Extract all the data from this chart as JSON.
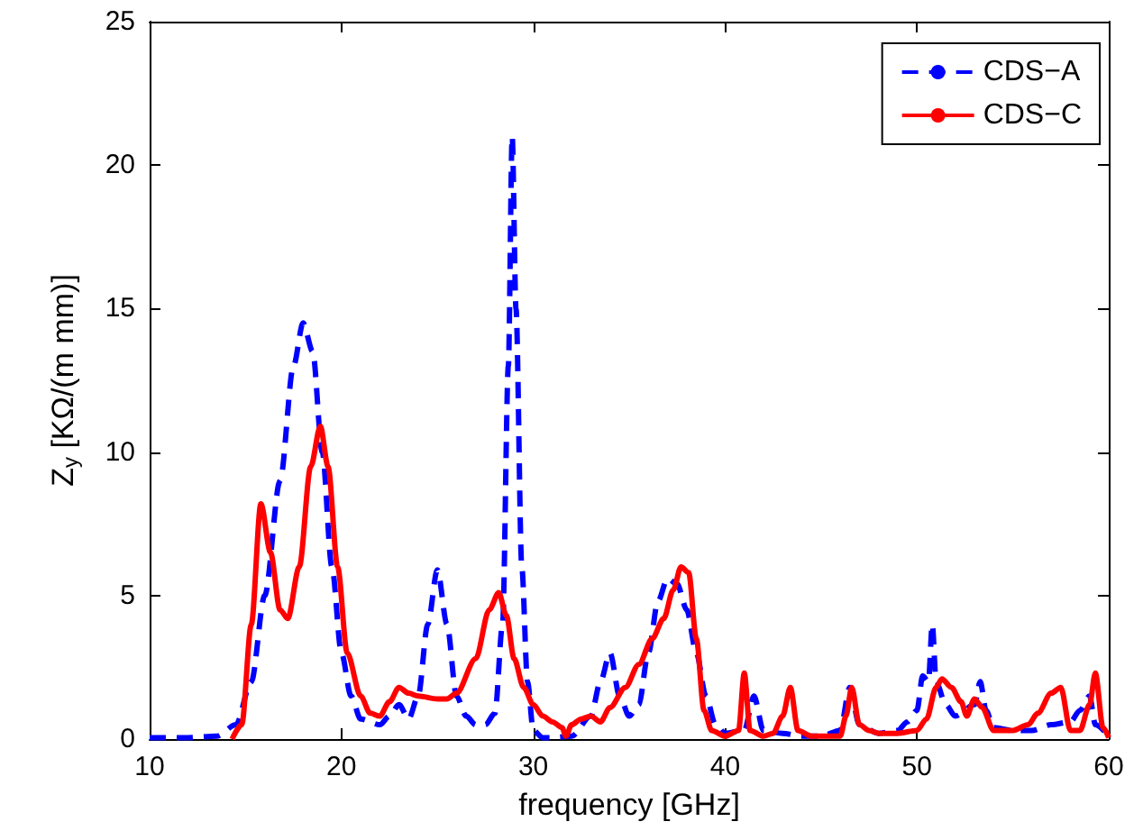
{
  "chart_data": {
    "type": "line",
    "xlabel": "frequency [GHz]",
    "ylabel": "Z$_{y}$ [KΩ/(m mm)]",
    "xlim": [
      10,
      60
    ],
    "xticks": [
      10,
      20,
      30,
      40,
      50,
      60
    ],
    "ylim": [
      0,
      25
    ],
    "yticks": [
      0,
      5,
      10,
      15,
      20,
      25
    ],
    "grid": false,
    "legend": "top right",
    "marker": "none",
    "series": [
      {
        "name": "CDS−A",
        "color": "#0000ff",
        "line_style": "dashed",
        "x": [
          10,
          12,
          13.5,
          14.5,
          15.3,
          16,
          16.8,
          17.5,
          18,
          18.5,
          19,
          19.5,
          20,
          20.5,
          21,
          22,
          22.5,
          23,
          23.5,
          24,
          24.5,
          25,
          25.5,
          26,
          26.5,
          27,
          27.5,
          28,
          28.4,
          28.7,
          28.9,
          29.1,
          29.4,
          29.7,
          30,
          30.5,
          31,
          32,
          33,
          33.5,
          34,
          34.5,
          35,
          35.5,
          36,
          36.5,
          37,
          37.5,
          38,
          38.5,
          39,
          39.5,
          40,
          41,
          41.5,
          42,
          43,
          44,
          45,
          46,
          46.5,
          47,
          48,
          49,
          49.5,
          50,
          50.3,
          50.6,
          50.8,
          51,
          51.5,
          52,
          53,
          53.3,
          53.6,
          54,
          55,
          56,
          57,
          58,
          58.5,
          59,
          59.3,
          60
        ],
        "values": [
          0.05,
          0.05,
          0.1,
          0.5,
          2,
          5,
          9,
          13,
          14.5,
          13.5,
          10,
          6,
          3,
          1.5,
          0.7,
          0.5,
          0.8,
          1.2,
          0.7,
          1.5,
          4,
          5.9,
          4,
          1.5,
          0.8,
          0.5,
          0.5,
          0.9,
          4,
          13,
          21,
          15,
          6,
          2,
          0.3,
          0.05,
          0.05,
          0.1,
          0.8,
          2,
          3,
          1.5,
          0.8,
          1.2,
          3,
          4.8,
          5.6,
          5.4,
          4.5,
          3,
          1.5,
          0.5,
          0.2,
          0.3,
          1.5,
          0.3,
          0.2,
          0.1,
          0.1,
          0.3,
          1.8,
          0.5,
          0.2,
          0.3,
          0.6,
          1,
          2.2,
          2,
          4,
          2,
          1.2,
          0.8,
          1.2,
          2,
          1,
          0.4,
          0.3,
          0.3,
          0.5,
          0.6,
          1,
          1.5,
          0.5,
          0.1
        ]
      },
      {
        "name": "CDS−C",
        "color": "#ff0000",
        "line_style": "solid",
        "x": [
          14.3,
          14.8,
          15.3,
          15.8,
          16.3,
          16.8,
          17.2,
          17.8,
          18.4,
          18.9,
          19.3,
          19.8,
          20.3,
          21,
          21.5,
          22,
          22.5,
          23,
          23.5,
          24,
          25,
          25.5,
          26,
          27,
          27.7,
          28.2,
          28.6,
          29,
          29.5,
          30,
          30.5,
          31,
          31.5,
          31.7,
          32,
          32.5,
          33,
          33.5,
          34,
          34.8,
          35.5,
          36.2,
          36.8,
          37.3,
          37.7,
          38.1,
          38.5,
          38.9,
          39.3,
          40,
          40.7,
          41,
          41.3,
          42,
          42.5,
          43,
          43.4,
          43.8,
          44.5,
          46,
          46.3,
          46.6,
          47,
          47.5,
          48,
          49,
          50,
          50.5,
          51,
          51.3,
          51.8,
          52.3,
          52.6,
          53,
          53.4,
          54,
          55,
          55.8,
          56.3,
          57,
          57.5,
          58,
          58.5,
          59,
          59.3,
          59.7,
          60
        ],
        "values": [
          0,
          0.5,
          4,
          8.2,
          6.5,
          4.5,
          4.2,
          6,
          9.5,
          10.9,
          9.5,
          6,
          3,
          1.5,
          0.9,
          0.8,
          1.3,
          1.8,
          1.6,
          1.5,
          1.4,
          1.4,
          1.6,
          2.8,
          4.5,
          5.1,
          4.3,
          2.8,
          1.8,
          1.2,
          0.8,
          0.6,
          0.4,
          0.1,
          0.5,
          0.7,
          0.8,
          0.6,
          1.1,
          1.8,
          2.6,
          3.5,
          4.2,
          5.2,
          6,
          5.8,
          3.5,
          1,
          0.3,
          0.1,
          0.3,
          2.3,
          0.3,
          0.1,
          0.2,
          0.8,
          1.8,
          0.3,
          0.1,
          0.1,
          0.8,
          1.8,
          0.5,
          0.3,
          0.2,
          0.2,
          0.3,
          0.7,
          1.8,
          2.1,
          1.8,
          1.3,
          0.8,
          1.4,
          1.1,
          0.3,
          0.3,
          0.5,
          0.9,
          1.6,
          1.8,
          0.3,
          0.3,
          1.2,
          2.3,
          0.4,
          0.05
        ]
      }
    ]
  }
}
